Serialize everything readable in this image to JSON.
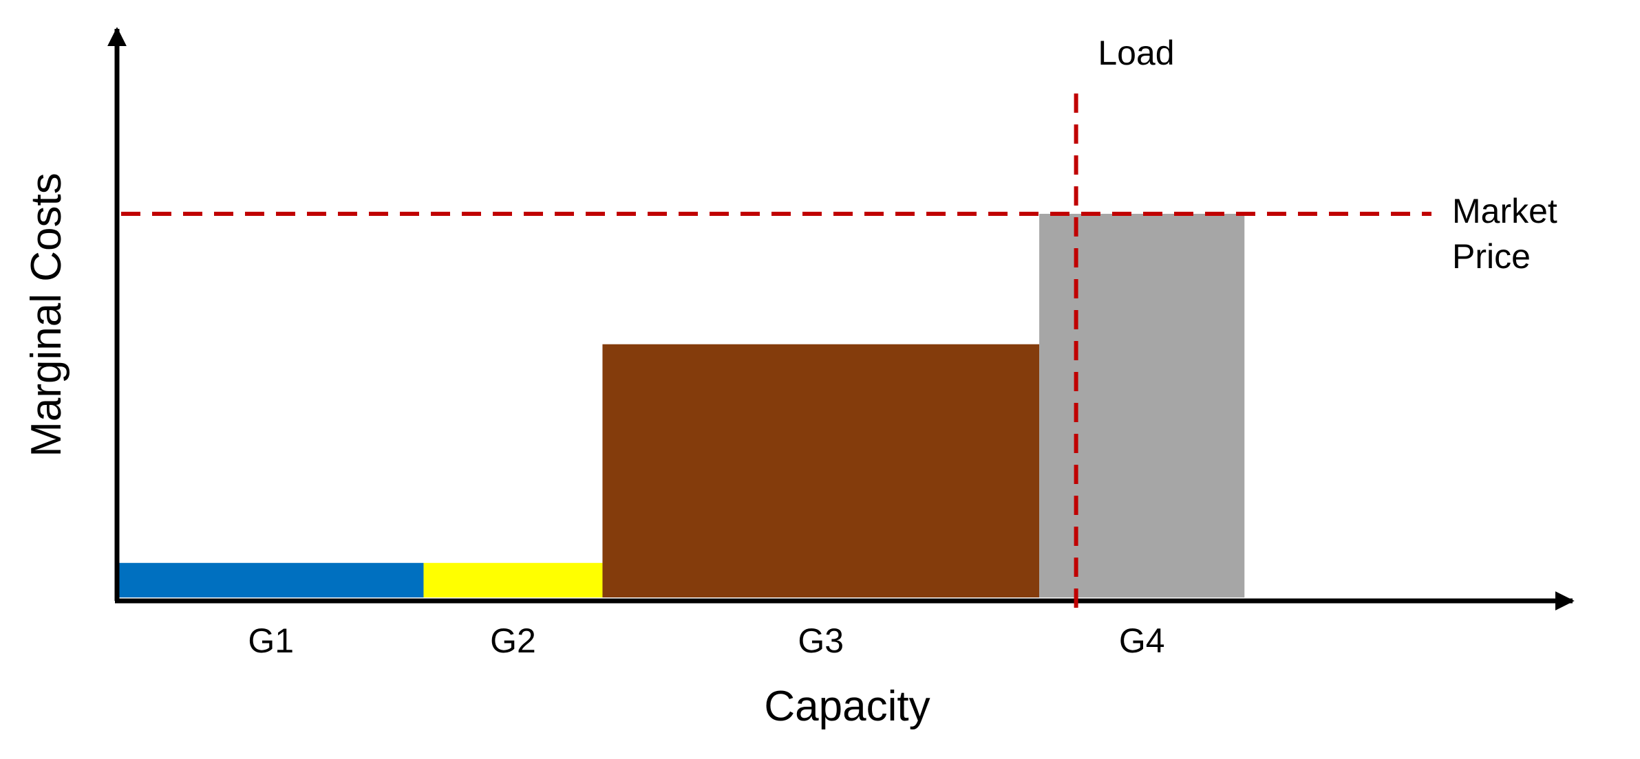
{
  "chart_data": {
    "type": "bar",
    "variant": "merit-order step chart",
    "title": "",
    "xlabel": "Capacity",
    "ylabel": "Marginal Costs",
    "xlim": [
      0,
      13.0
    ],
    "ylim": [
      0,
      10.0
    ],
    "grid": false,
    "series": [
      {
        "name": "G1",
        "start": 0.0,
        "width": 2.9,
        "marginal_cost": 0.9,
        "color": "#0070c0"
      },
      {
        "name": "G2",
        "start": 2.9,
        "width": 1.7,
        "marginal_cost": 0.9,
        "color": "#ffff00"
      },
      {
        "name": "G3",
        "start": 4.6,
        "width": 4.15,
        "marginal_cost": 6.6,
        "color": "#843c0c"
      },
      {
        "name": "G4",
        "start": 8.75,
        "width": 1.95,
        "marginal_cost": 10.0,
        "color": "#a6a6a6"
      }
    ],
    "market_price": {
      "label_lines": [
        "Market",
        "Price"
      ],
      "value": 10.0,
      "color": "#c00000"
    },
    "load": {
      "label": "Load",
      "value": 9.1,
      "color": "#c00000"
    }
  }
}
